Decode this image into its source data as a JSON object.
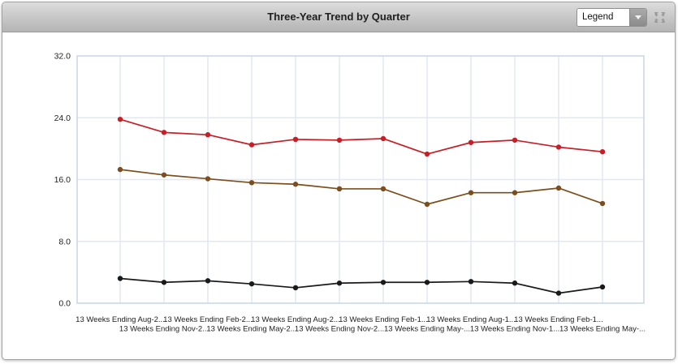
{
  "header": {
    "title": "Three-Year Trend by Quarter",
    "legend_dropdown": {
      "value": "Legend",
      "expanded": false
    },
    "icons": {
      "dropdown_arrow": "triangle-down",
      "maximize": "four-corner-arrows"
    }
  },
  "chart_data": {
    "type": "line",
    "title": "Three-Year Trend by Quarter",
    "xlabel": "",
    "ylabel": "",
    "ylim": [
      0,
      32
    ],
    "yticks": [
      0,
      8,
      16,
      24,
      32
    ],
    "ytick_labels": [
      "0.0",
      "8.0",
      "16.0",
      "24.0",
      "32.0"
    ],
    "grid": true,
    "legend_position": "collapsed-dropdown",
    "colors": {
      "gridline": "#dfe8f4",
      "plot_border": "#c8d6e6",
      "tick_text": "#222222"
    },
    "categories": [
      "13 Weeks Ending Aug-2...",
      "13 Weeks Ending Nov-2...",
      "13 Weeks Ending Feb-2...",
      "13 Weeks Ending May-2...",
      "13 Weeks Ending Aug-2...",
      "13 Weeks Ending Nov-2...",
      "13 Weeks Ending Feb-1...",
      "13 Weeks Ending May-...",
      "13 Weeks Ending Aug-1...",
      "13 Weeks Ending Nov-1...",
      "13 Weeks Ending Feb-1...",
      "13 Weeks Ending May-..."
    ],
    "series": [
      {
        "color": "#c81e26",
        "values": [
          23.8,
          22.1,
          21.8,
          20.5,
          21.2,
          21.1,
          21.3,
          19.3,
          20.8,
          21.1,
          20.2,
          19.6
        ]
      },
      {
        "color": "#7d4e1d",
        "values": [
          17.3,
          16.6,
          16.1,
          15.6,
          15.4,
          14.8,
          14.8,
          12.8,
          14.3,
          14.3,
          14.9,
          12.9
        ]
      },
      {
        "color": "#1a1a1a",
        "values": [
          3.2,
          2.7,
          2.9,
          2.5,
          2.0,
          2.6,
          2.7,
          2.7,
          2.8,
          2.6,
          1.3,
          2.1
        ]
      }
    ]
  }
}
